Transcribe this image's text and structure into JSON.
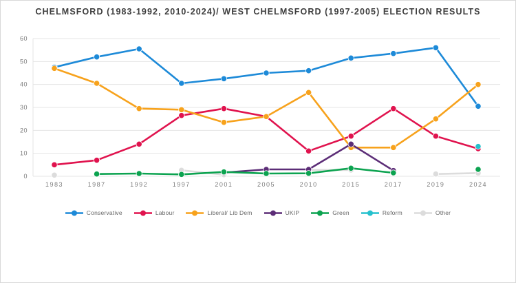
{
  "page": {
    "title": "CHELMSFORD (1983-1992, 2010-2024)/ WEST CHELMSFORD (1997-2005) ELECTION RESULTS"
  },
  "chart_data": {
    "type": "line",
    "title": "CHELMSFORD (1983-1992, 2010-2024)/ WEST CHELMSFORD (1997-2005) ELECTION RESULTS",
    "categories": [
      "1983",
      "1987",
      "1992",
      "1997",
      "2001",
      "2005",
      "2010",
      "2015",
      "2017",
      "2019",
      "2024"
    ],
    "xlabel": "",
    "ylabel": "",
    "ylim": [
      0,
      60
    ],
    "yticks": [
      0,
      10,
      20,
      30,
      40,
      50,
      60
    ],
    "grid": true,
    "legend_position": "bottom",
    "colors": {
      "gridline": "#e4e4e4",
      "axis_label": "#7c7c7c",
      "title_text": "#3d3d3d",
      "legend_text": "#666666"
    },
    "series": [
      {
        "name": "Conservative",
        "color": "#1d8ad8",
        "values": [
          47.5,
          52,
          55.5,
          40.5,
          42.5,
          45,
          46,
          51.5,
          53.5,
          56,
          30.5
        ]
      },
      {
        "name": "Labour",
        "color": "#e0134e",
        "values": [
          5,
          7,
          14,
          26.5,
          29.5,
          26,
          11,
          17.5,
          29.5,
          17.5,
          12
        ]
      },
      {
        "name": "Liberal/ Lib Dem",
        "color": "#f7a21c",
        "values": [
          47,
          40.5,
          29.5,
          29,
          23.5,
          26,
          36.5,
          12.5,
          12.5,
          25,
          40
        ]
      },
      {
        "name": "UKIP",
        "color": "#5c2d77",
        "values": [
          null,
          null,
          null,
          null,
          1.6,
          3,
          3,
          14,
          2.5,
          null,
          null
        ]
      },
      {
        "name": "Green",
        "color": "#0ca350",
        "values": [
          null,
          1,
          1.2,
          0.8,
          1.9,
          1.2,
          1.3,
          3.5,
          1.5,
          null,
          3
        ]
      },
      {
        "name": "Reform",
        "color": "#25c1cd",
        "values": [
          null,
          null,
          null,
          null,
          null,
          null,
          null,
          null,
          null,
          null,
          13
        ]
      },
      {
        "name": "Other",
        "color": "#dcdcdc",
        "values": [
          0.5,
          null,
          null,
          2.6,
          0.7,
          null,
          2.8,
          2.7,
          null,
          1,
          1.4
        ]
      }
    ]
  }
}
